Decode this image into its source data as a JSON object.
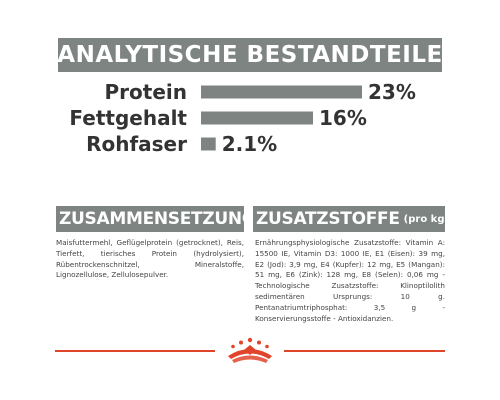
{
  "header": {
    "title": "ANALYTISCHE BESTANDTEILE"
  },
  "chart_data": {
    "type": "bar",
    "orientation": "horizontal",
    "categories": [
      "Protein",
      "Fettgehalt",
      "Rohfaser"
    ],
    "values": [
      23,
      16,
      2.1
    ],
    "value_labels": [
      "23%",
      "16%",
      "2.1%"
    ],
    "bar_color": "#7e8481",
    "xlim": [
      0,
      23
    ]
  },
  "composition": {
    "title": "ZUSAMMENSETZUNG",
    "text": "Maisfuttermehl, Geflügelprotein (getrocknet), Reis, Tierfett, tierisches Protein (hydrolysiert), Rübentrockenschnitzel, Mineralstoffe, Lignozellulose, Zellulosepulver."
  },
  "additives": {
    "title": "ZUSATZSTOFFE",
    "suffix": "(pro kg)",
    "text": "Ernährungsphysiologische Zusatzstoffe: Vitamin A: 15500 IE, Vitamin D3: 1000 IE, E1 (Eisen): 39 mg, E2 (Jod): 3,9 mg, E4 (Kupfer): 12 mg, E5 (Mangan): 51 mg, E6 (Zink): 128 mg, E8 (Selen): 0,06 mg - Technologische Zusatzstoffe: Klinoptilolith sedimentären Ursprungs: 10 g. Pentanatriumtriphosphat: 3,5 g - Konservierungsstoffe - Antioxidanzien."
  },
  "colors": {
    "accent": "#e0452b",
    "panel": "#7e8481"
  },
  "footer": {
    "logo_icon": "royal-canin-crown-icon"
  }
}
